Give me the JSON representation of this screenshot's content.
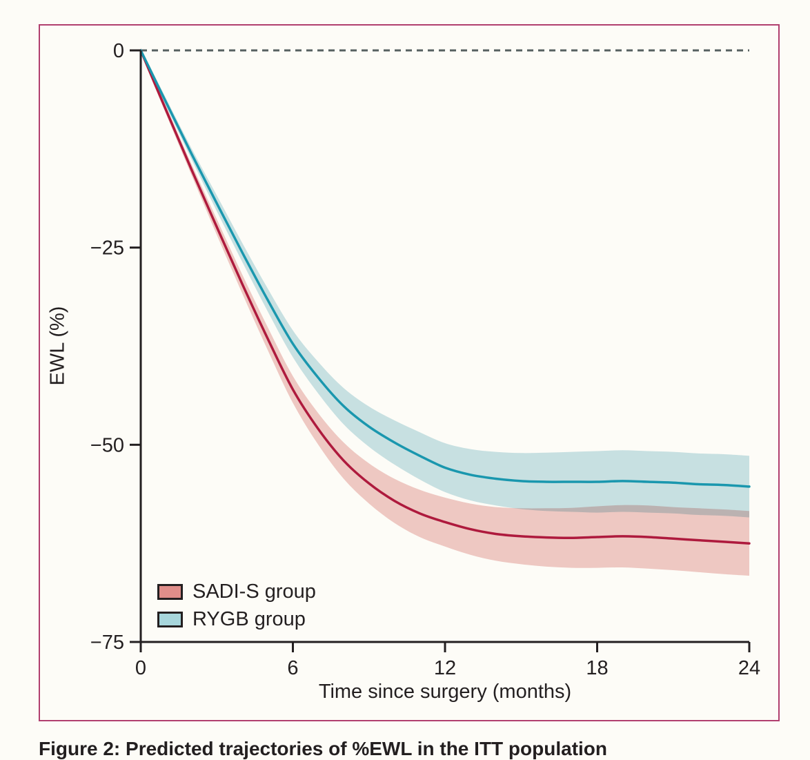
{
  "figure": {
    "background": "#fdfcf7",
    "border_color": "#b13f6e",
    "caption": "Figure 2: Predicted trajectories of %EWL in the ITT population"
  },
  "chart_data": {
    "type": "line",
    "title": "",
    "xlabel": "Time since surgery (months)",
    "ylabel": "EWL (%)",
    "xlim": [
      0,
      24
    ],
    "ylim": [
      -75,
      0
    ],
    "x_ticks": [
      0,
      6,
      12,
      18,
      24
    ],
    "x_tick_labels": [
      "0",
      "6",
      "12",
      "18",
      "24"
    ],
    "y_ticks": [
      0,
      -25,
      -50,
      -75
    ],
    "y_tick_labels": [
      "0",
      "−25",
      "−50",
      "−75"
    ],
    "grid": false,
    "reference_line": {
      "y": 0,
      "style": "dashed",
      "color": "#566060"
    },
    "axis_color": "#231f20",
    "legend_position": "bottom-left",
    "x_months": [
      0,
      1,
      2,
      3,
      4,
      5,
      6,
      7,
      8,
      9,
      10,
      11,
      12,
      13,
      14,
      15,
      16,
      17,
      18,
      19,
      20,
      21,
      22,
      23,
      24
    ],
    "series": [
      {
        "name": "SADI-S group",
        "line_color": "#ae1a3d",
        "band_color": "#eec8c2",
        "legend_swatch_color": "#e08e8a",
        "mean": [
          0,
          -7.6,
          -15.1,
          -22.4,
          -29.6,
          -36.5,
          -43.0,
          -48.0,
          -52.0,
          -54.9,
          -57.1,
          -58.7,
          -59.8,
          -60.7,
          -61.3,
          -61.6,
          -61.75,
          -61.8,
          -61.7,
          -61.6,
          -61.7,
          -61.9,
          -62.1,
          -62.3,
          -62.5
        ],
        "ci_half_width": [
          0.3,
          0.5,
          0.7,
          1.0,
          1.2,
          1.45,
          1.7,
          2.0,
          2.3,
          2.55,
          2.8,
          3.0,
          3.1,
          3.25,
          3.4,
          3.55,
          3.7,
          3.8,
          3.9,
          3.95,
          4.0,
          4.0,
          4.05,
          4.1,
          4.1
        ]
      },
      {
        "name": "RYGB group",
        "line_color": "#1a97ae",
        "band_color": "#c9e3e9",
        "legend_swatch_color": "#a7d6dc",
        "mean": [
          0,
          -6.6,
          -13.1,
          -19.4,
          -25.6,
          -31.6,
          -37.2,
          -41.5,
          -45.1,
          -47.7,
          -49.7,
          -51.4,
          -52.9,
          -53.8,
          -54.3,
          -54.6,
          -54.7,
          -54.7,
          -54.7,
          -54.6,
          -54.7,
          -54.8,
          -55.0,
          -55.1,
          -55.3
        ],
        "ci_half_width": [
          0.3,
          0.5,
          0.7,
          1.0,
          1.2,
          1.45,
          1.7,
          2.0,
          2.3,
          2.55,
          2.8,
          3.0,
          3.1,
          3.25,
          3.4,
          3.55,
          3.7,
          3.8,
          3.9,
          3.9,
          3.9,
          3.9,
          3.9,
          3.9,
          3.9
        ]
      }
    ]
  }
}
